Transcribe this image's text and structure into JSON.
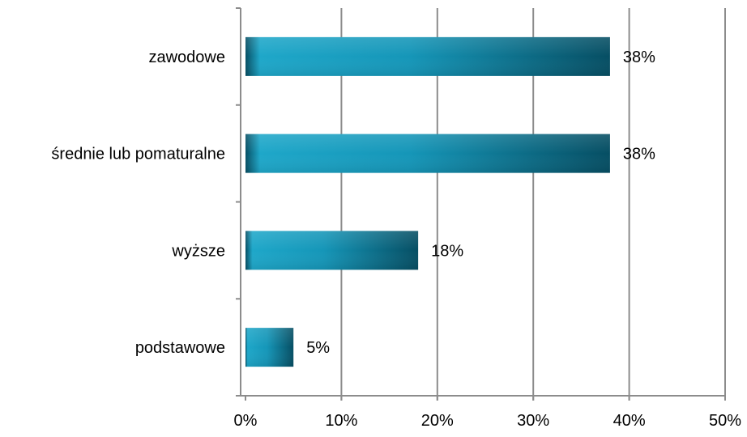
{
  "chart_data": {
    "type": "bar",
    "orientation": "horizontal",
    "categories": [
      "zawodowe",
      "średnie lub pomaturalne",
      "wyższe",
      "podstawowe"
    ],
    "values": [
      38,
      38,
      18,
      5
    ],
    "data_labels": [
      "38%",
      "38%",
      "18%",
      "5%"
    ],
    "title": "",
    "xlabel": "",
    "ylabel": "",
    "xlim": [
      0,
      50
    ],
    "x_ticks": [
      0,
      10,
      20,
      30,
      40,
      50
    ],
    "x_tick_labels": [
      "0%",
      "10%",
      "20%",
      "30%",
      "40%",
      "50%"
    ],
    "grid": "vertical",
    "legend": "none",
    "colors": {
      "bar_light": "#1ea7c9",
      "bar_mid": "#1596b8",
      "bar_dark": "#064e63",
      "gridline": "#8c8c8c",
      "axis": "#8c8c8c"
    }
  }
}
